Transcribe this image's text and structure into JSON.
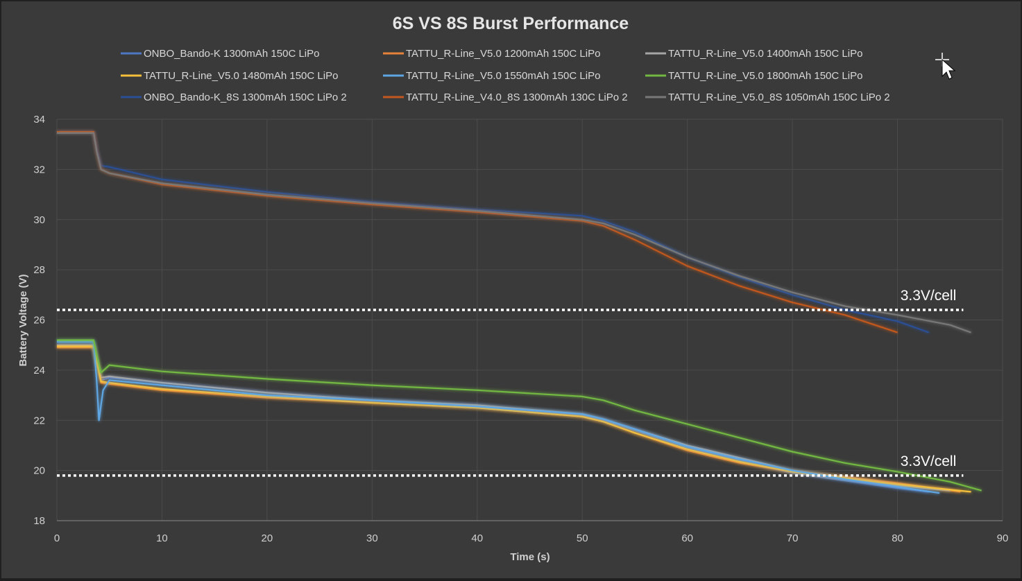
{
  "chart_data": {
    "type": "line",
    "title": "6S VS 8S Burst Performance",
    "xlabel": "Time (s)",
    "ylabel": "Battery Voltage (V)",
    "xlim": [
      0,
      90
    ],
    "ylim": [
      18,
      34
    ],
    "xticks": [
      0,
      10,
      20,
      30,
      40,
      50,
      60,
      70,
      80,
      90
    ],
    "yticks": [
      18,
      20,
      22,
      24,
      26,
      28,
      30,
      32,
      34
    ],
    "grid": true,
    "legend_position": "top",
    "series": [
      {
        "name": "ONBO_Bando-K 1300mAh 150C LiPo",
        "color": "#4f78c4",
        "x": [
          0,
          3.5,
          3.8,
          4.2,
          5,
          10,
          20,
          30,
          40,
          50,
          52,
          55,
          60,
          65,
          70,
          75,
          80,
          83
        ],
        "y": [
          25.1,
          25.1,
          24.4,
          23.6,
          23.7,
          23.5,
          23.1,
          22.8,
          22.6,
          22.2,
          22.0,
          21.6,
          20.9,
          20.4,
          19.9,
          19.6,
          19.3,
          19.15
        ]
      },
      {
        "name": "TATTU_R-Line_V5.0 1200mAh 150C LiPo",
        "color": "#e5833a",
        "x": [
          0,
          3.5,
          3.8,
          4.2,
          5,
          10,
          20,
          30,
          40,
          50,
          52,
          55,
          60,
          65,
          70,
          75,
          80,
          86
        ],
        "y": [
          24.9,
          24.9,
          24.3,
          23.5,
          23.45,
          23.2,
          22.9,
          22.7,
          22.5,
          22.15,
          21.95,
          21.5,
          20.8,
          20.3,
          19.95,
          19.75,
          19.5,
          19.15
        ]
      },
      {
        "name": "TATTU_R-Line_V5.0 1400mAh 150C LiPo",
        "color": "#a5a5a5",
        "x": [
          0,
          3.5,
          3.8,
          4.2,
          5,
          10,
          20,
          30,
          40,
          50,
          52,
          55,
          60,
          65,
          70,
          75,
          80,
          85
        ],
        "y": [
          25.0,
          25.0,
          24.4,
          23.7,
          23.75,
          23.5,
          23.1,
          22.8,
          22.6,
          22.25,
          22.05,
          21.65,
          21.0,
          20.5,
          20.0,
          19.7,
          19.4,
          19.2
        ]
      },
      {
        "name": "TATTU_R-Line_V5.0 1480mAh 150C LiPo",
        "color": "#f5c03a",
        "x": [
          0,
          3.5,
          3.8,
          4.2,
          5,
          10,
          20,
          30,
          40,
          50,
          52,
          55,
          60,
          65,
          70,
          75,
          80,
          87
        ],
        "y": [
          24.95,
          24.95,
          24.3,
          23.55,
          23.5,
          23.25,
          22.95,
          22.7,
          22.5,
          22.15,
          21.95,
          21.5,
          20.85,
          20.35,
          19.95,
          19.7,
          19.45,
          19.15
        ]
      },
      {
        "name": "TATTU_R-Line_V5.0 1550mAh 150C LiPo",
        "color": "#5ea6e3",
        "x": [
          0,
          3.5,
          3.8,
          4.0,
          4.4,
          5,
          10,
          20,
          30,
          40,
          50,
          52,
          55,
          60,
          65,
          70,
          75,
          80,
          84
        ],
        "y": [
          25.15,
          25.15,
          23.5,
          22.0,
          23.2,
          23.6,
          23.4,
          23.0,
          22.8,
          22.55,
          22.25,
          22.05,
          21.65,
          20.95,
          20.45,
          20.0,
          19.65,
          19.35,
          19.1
        ]
      },
      {
        "name": "TATTU_R-Line_V5.0 1800mAh 150C LiPo",
        "color": "#72b843",
        "x": [
          0,
          3.5,
          3.8,
          4.2,
          5,
          10,
          20,
          30,
          40,
          50,
          52,
          55,
          60,
          65,
          70,
          75,
          80,
          85,
          88
        ],
        "y": [
          25.2,
          25.2,
          24.6,
          23.9,
          24.2,
          23.95,
          23.65,
          23.4,
          23.2,
          22.95,
          22.8,
          22.4,
          21.85,
          21.3,
          20.75,
          20.3,
          19.95,
          19.55,
          19.2
        ]
      },
      {
        "name": "ONBO_Bando-K_8S 1300mAh 150C LiPo 2",
        "color": "#2b4f94",
        "x": [
          0,
          3.5,
          3.8,
          4.2,
          5,
          10,
          20,
          30,
          40,
          50,
          52,
          55,
          60,
          65,
          70,
          75,
          80,
          83
        ],
        "y": [
          33.5,
          33.5,
          32.8,
          32.15,
          32.1,
          31.6,
          31.1,
          30.7,
          30.4,
          30.15,
          29.95,
          29.5,
          28.5,
          27.7,
          27.0,
          26.4,
          25.95,
          25.5
        ]
      },
      {
        "name": "TATTU_R-Line_V4.0_8S 1300mAh 130C LiPo 2",
        "color": "#c2581f",
        "x": [
          0,
          3.5,
          3.8,
          4.2,
          5,
          10,
          20,
          30,
          40,
          50,
          52,
          55,
          60,
          65,
          70,
          75,
          80
        ],
        "y": [
          33.5,
          33.5,
          32.7,
          32.0,
          31.85,
          31.4,
          30.95,
          30.6,
          30.3,
          29.95,
          29.75,
          29.2,
          28.15,
          27.35,
          26.7,
          26.2,
          25.5
        ]
      },
      {
        "name": "TATTU_R-Line_V5.0_8S 1050mAh 150C LiPo 2",
        "color": "#787878",
        "x": [
          0,
          3.5,
          3.8,
          4.2,
          5,
          10,
          20,
          30,
          40,
          50,
          52,
          55,
          60,
          65,
          70,
          75,
          80,
          85,
          87
        ],
        "y": [
          33.45,
          33.45,
          32.7,
          32.0,
          31.85,
          31.45,
          31.0,
          30.65,
          30.35,
          30.0,
          29.85,
          29.4,
          28.5,
          27.75,
          27.1,
          26.55,
          26.2,
          25.8,
          25.5
        ]
      }
    ],
    "reference_lines": [
      {
        "label": "3.3V/cell",
        "y": 26.4,
        "x_range": [
          0,
          86
        ]
      },
      {
        "label": "3.3V/cell",
        "y": 19.8,
        "x_range": [
          0,
          86
        ]
      }
    ]
  }
}
